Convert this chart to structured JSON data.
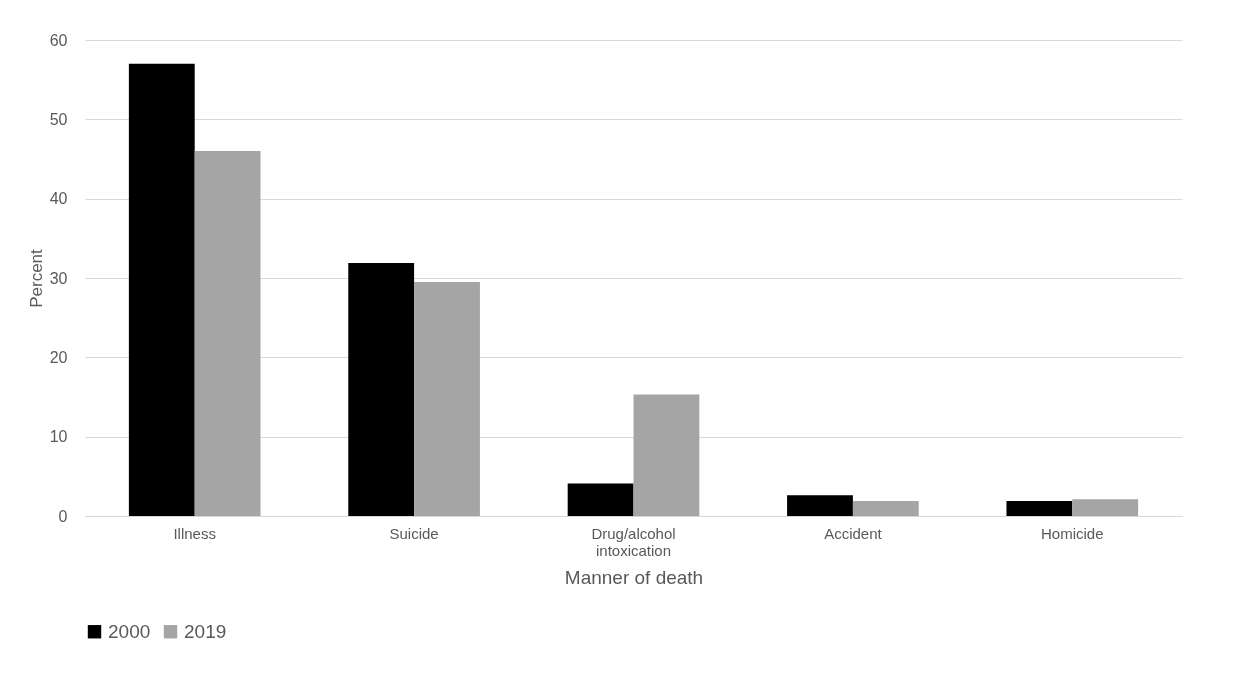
{
  "chart_data": {
    "type": "bar",
    "xlabel": "Manner of death",
    "ylabel": "Percent",
    "categories": [
      "Illness",
      "Suicide",
      "Drug/alcohol intoxication",
      "Accident",
      "Homicide"
    ],
    "series": [
      {
        "name": "2000",
        "color": "#000000",
        "values": [
          57,
          31.9,
          4.1,
          2.6,
          1.9
        ]
      },
      {
        "name": "2019",
        "color": "#a5a5a5",
        "values": [
          46,
          29.5,
          15.3,
          1.9,
          2.1
        ]
      }
    ],
    "ylim": [
      0,
      60
    ],
    "yticks": [
      0,
      10,
      20,
      30,
      40,
      50,
      60
    ],
    "grid": "y",
    "legend": "bottom"
  }
}
